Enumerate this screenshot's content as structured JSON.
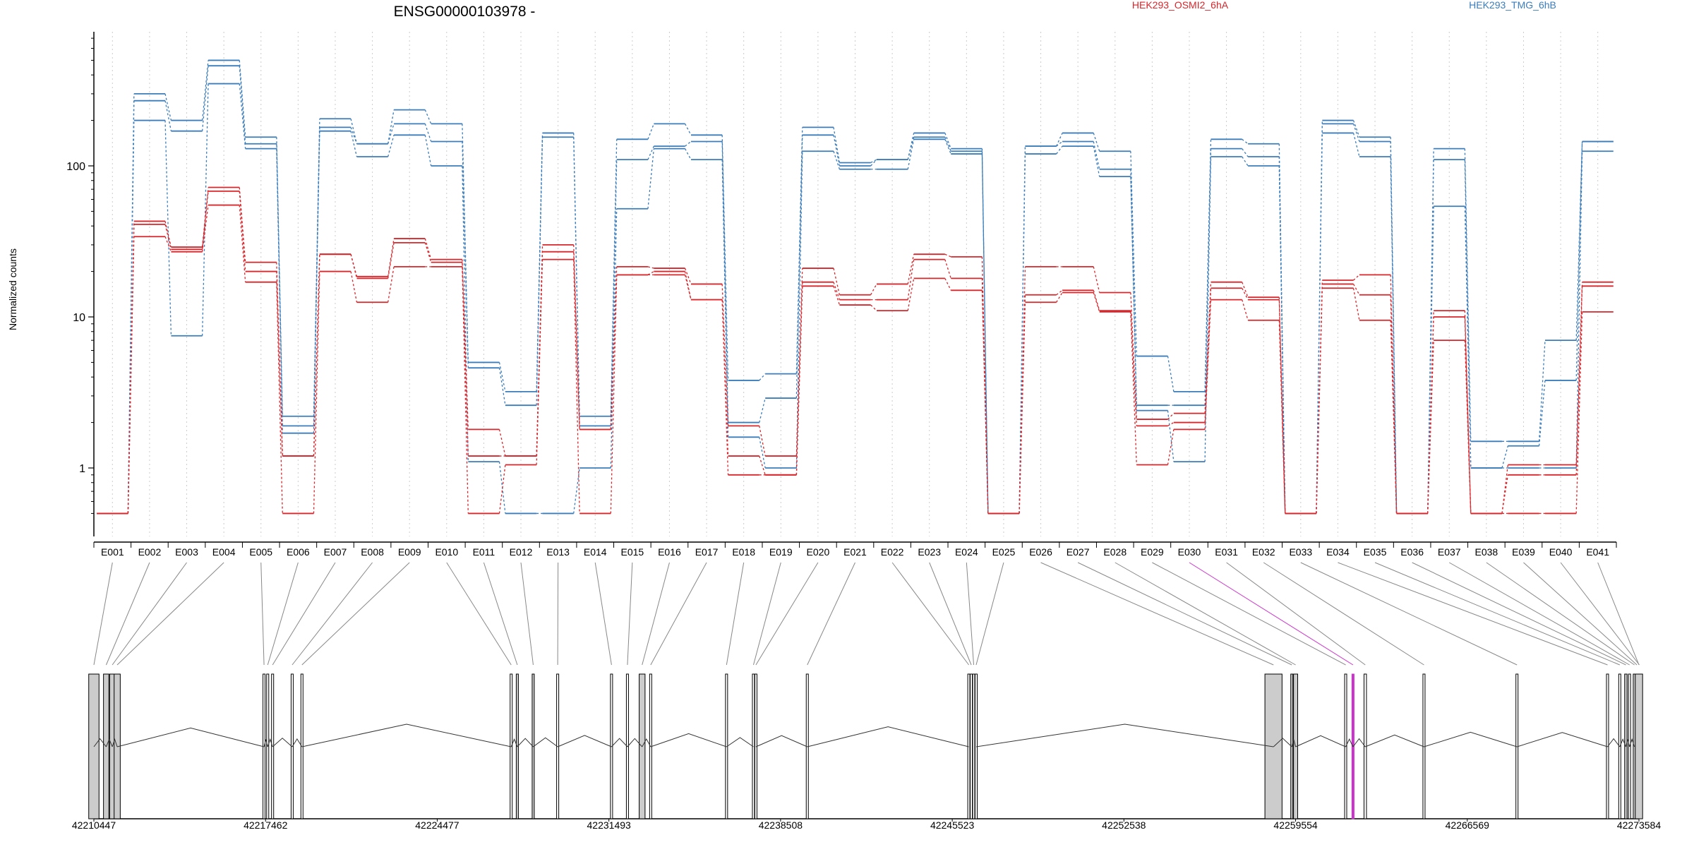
{
  "chart_data": {
    "type": "line",
    "title": "ENSG00000103978 -",
    "xlabel": "",
    "ylabel": "Normalized counts",
    "y_scale": "log",
    "yticks": [
      1,
      10,
      100
    ],
    "ytick_labels": [
      "1",
      "10",
      "100"
    ],
    "grid": "vertical dotted lines at each exon",
    "legend_placement": "top (text labels)",
    "categories": [
      "E001",
      "E002",
      "E003",
      "E004",
      "E005",
      "E006",
      "E007",
      "E008",
      "E009",
      "E010",
      "E011",
      "E012",
      "E013",
      "E014",
      "E015",
      "E016",
      "E017",
      "E018",
      "E019",
      "E020",
      "E021",
      "E022",
      "E023",
      "E024",
      "E025",
      "E026",
      "E027",
      "E028",
      "E029",
      "E030",
      "E031",
      "E032",
      "E033",
      "E034",
      "E035",
      "E036",
      "E037",
      "E038",
      "E039",
      "E040",
      "E041"
    ],
    "highlighted_exon": "E030",
    "series": [
      {
        "name": "HEK293_TMG_6hB",
        "condition": "HEK293_TMG_6hB",
        "color": "#3b7dbb",
        "values": [
          0.5,
          300,
          200,
          500,
          155,
          2.2,
          205,
          140,
          235,
          190,
          5,
          3.2,
          165,
          2.2,
          150,
          190,
          160,
          3.8,
          4.2,
          180,
          105,
          110,
          165,
          130,
          0.5,
          135,
          165,
          125,
          5.5,
          3.2,
          150,
          140,
          0.5,
          200,
          155,
          0.5,
          130,
          1.5,
          1.5,
          7,
          145
        ]
      },
      {
        "name": "HEK293_TMG_6hB",
        "condition": "HEK293_TMG_6hB",
        "color": "#3b7dbb",
        "values": [
          0.5,
          270,
          170,
          460,
          140,
          1.9,
          180,
          140,
          190,
          145,
          4.6,
          2.6,
          155,
          1.9,
          110,
          135,
          145,
          2.0,
          2.9,
          160,
          100,
          110,
          155,
          125,
          0.5,
          135,
          145,
          95,
          2.6,
          2.6,
          130,
          115,
          0.5,
          190,
          145,
          0.5,
          110,
          1.0,
          1.4,
          3.8,
          145
        ]
      },
      {
        "name": "HEK293_TMG_6hB",
        "condition": "HEK293_TMG_6hB",
        "color": "#3b7dbb",
        "values": [
          0.5,
          200,
          7.5,
          350,
          130,
          1.7,
          170,
          115,
          160,
          100,
          1.1,
          0.5,
          0.5,
          1.0,
          52,
          130,
          110,
          1.6,
          1.0,
          125,
          95,
          95,
          150,
          120,
          0.5,
          120,
          135,
          85,
          2.4,
          1.1,
          115,
          100,
          0.5,
          165,
          115,
          0.5,
          54,
          1.0,
          1.0,
          1.0,
          125
        ]
      },
      {
        "name": "HEK293_OSMI2_6hA",
        "condition": "HEK293_OSMI2_6hA",
        "color": "#d8262b",
        "values": [
          0.5,
          43,
          29,
          72,
          23,
          1.2,
          26,
          18.5,
          33,
          24,
          1.8,
          1.2,
          30,
          1.8,
          21.5,
          21,
          16.5,
          1.9,
          1.2,
          21,
          14,
          16.5,
          26,
          25,
          0.5,
          21.5,
          21.5,
          14.5,
          2.1,
          2.3,
          17,
          13.5,
          0.5,
          17.5,
          19,
          0.5,
          11,
          0.5,
          1.05,
          1.05,
          17
        ]
      },
      {
        "name": "HEK293_OSMI2_6hA",
        "condition": "HEK293_OSMI2_6hA",
        "color": "#d8262b",
        "values": [
          0.5,
          41,
          28,
          68,
          20,
          1.2,
          26,
          18,
          31,
          23,
          1.2,
          1.2,
          27,
          1.8,
          19,
          20,
          13,
          1.2,
          0.9,
          17,
          13,
          13,
          24,
          18,
          0.5,
          14,
          15,
          11,
          1.9,
          2.0,
          15.5,
          13,
          0.5,
          16.5,
          14,
          0.5,
          10,
          0.5,
          0.9,
          0.9,
          16
        ]
      },
      {
        "name": "HEK293_OSMI2_6hA",
        "condition": "HEK293_OSMI2_6hA",
        "color": "#d8262b",
        "values": [
          0.5,
          34,
          27,
          55,
          17,
          0.5,
          20,
          12.5,
          21.5,
          21.5,
          0.5,
          1.05,
          24,
          0.5,
          19,
          19,
          13,
          0.9,
          0.9,
          16,
          12,
          11,
          18,
          15,
          0.5,
          12.5,
          14.5,
          10.8,
          1.05,
          1.8,
          13,
          9.5,
          0.5,
          15.5,
          9.5,
          0.5,
          7,
          0.5,
          0.5,
          0.5,
          10.8
        ]
      }
    ],
    "legend": [
      {
        "label": "HEK293_OSMI2_6hA",
        "color": "#d8262b"
      },
      {
        "label": "HEK293_TMG_6hB",
        "color": "#3b7dbb"
      }
    ],
    "gene_model": {
      "genomic_ticks": [
        "42210447",
        "42217462",
        "42224477",
        "42231493",
        "42238508",
        "42245523",
        "42252538",
        "42259554",
        "42266569",
        "42273584"
      ],
      "tick_values": [
        42210447,
        42217462,
        42224477,
        42231493,
        42238508,
        42245523,
        42252538,
        42259554,
        42266569,
        42273584
      ],
      "exon_positions": [
        42210447,
        42210950,
        42211200,
        42211400,
        42217400,
        42217550,
        42217750,
        42218550,
        42218950,
        42227500,
        42227750,
        42228400,
        42229400,
        42231600,
        42232250,
        42232850,
        42233200,
        42236300,
        42237400,
        42237500,
        42239600,
        42246200,
        42246300,
        42246400,
        42246500,
        42258650,
        42259400,
        42259554,
        42261600,
        42261900,
        42262400,
        42264800,
        42268600,
        42272300,
        42272800,
        42273050,
        42273200,
        42273400,
        42273500,
        42273600,
        42273584
      ],
      "exon_widths": [
        420,
        220,
        220,
        250,
        80,
        60,
        80,
        60,
        60,
        80,
        80,
        80,
        60,
        60,
        60,
        240,
        60,
        60,
        60,
        60,
        60,
        60,
        60,
        60,
        60,
        700,
        50,
        170,
        60,
        60,
        100,
        60,
        60,
        60,
        60,
        100,
        60,
        100,
        80,
        80,
        300
      ],
      "exon_filled": [
        true,
        true,
        true,
        true,
        false,
        false,
        false,
        false,
        false,
        false,
        true,
        true,
        false,
        false,
        false,
        true,
        false,
        false,
        false,
        false,
        false,
        false,
        false,
        false,
        false,
        true,
        true,
        true,
        false,
        false,
        false,
        false,
        false,
        false,
        false,
        true,
        false,
        true,
        true,
        true,
        true
      ],
      "intron_vertices_value": [
        42214000,
        42221000,
        42229000,
        42237000,
        42243000,
        42252500,
        42264000
      ],
      "highlight_color": "#cc33cc"
    }
  }
}
